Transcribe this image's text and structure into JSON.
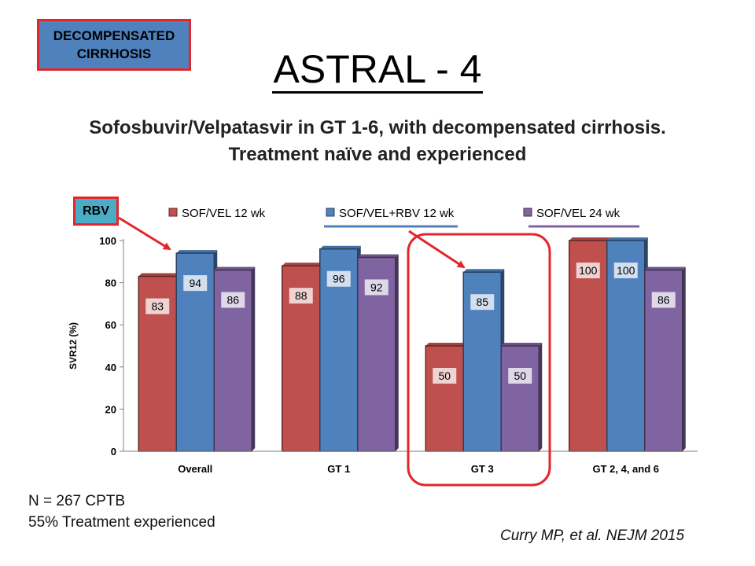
{
  "badge": {
    "line1": "DECOMPENSATED",
    "line2": "CIRRHOSIS"
  },
  "title": "ASTRAL - 4",
  "subtitle": {
    "line1": "Sofosbuvir/Velpatasvir in GT 1-6, with decompensated cirrhosis.",
    "line2": "Treatment naïve and experienced"
  },
  "rbv_label": "RBV",
  "colors": {
    "red": "#c0504d",
    "blue": "#4f81bd",
    "purple": "#8064a2",
    "annotation": "#e3262b"
  },
  "chart_data": {
    "type": "bar",
    "ylabel": "SVR12 (%)",
    "ylim": [
      0,
      100
    ],
    "yticks": [
      0,
      20,
      40,
      60,
      80,
      100
    ],
    "legend_position": "top",
    "grid": false,
    "categories": [
      "Overall",
      "GT 1",
      "GT 3",
      "GT 2, 4, and 6"
    ],
    "series": [
      {
        "name": "SOF/VEL 12 wk",
        "color": "#c0504d",
        "values": [
          83,
          88,
          50,
          100
        ]
      },
      {
        "name": "SOF/VEL+RBV 12 wk",
        "color": "#4f81bd",
        "values": [
          94,
          96,
          85,
          100
        ]
      },
      {
        "name": "SOF/VEL 24 wk",
        "color": "#8064a2",
        "values": [
          86,
          92,
          50,
          86
        ]
      }
    ]
  },
  "notes": {
    "line1": "N = 267 CPTB",
    "line2": "55% Treatment experienced"
  },
  "citation": "Curry MP, et al. NEJM 2015"
}
